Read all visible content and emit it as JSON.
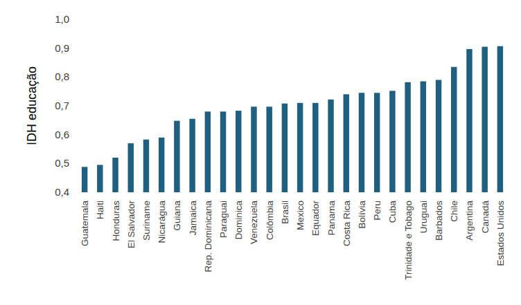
{
  "chart_data": {
    "type": "bar",
    "ylabel": "IDH educação",
    "categories": [
      "Guatemala",
      "Haiti",
      "Honduras",
      "El Salvador",
      "Suriname",
      "Nicarágua",
      "Guiana",
      "Jamaica",
      "Rep. Dominicana",
      "Paraguai",
      "Dominica",
      "Venezuela",
      "Colômbia",
      "Brasil",
      "Mexico",
      "Equador",
      "Panama",
      "Costa Rica",
      "Bolívia",
      "Peru",
      "Cuba",
      "Trinidade e Tobago",
      "Uruguai",
      "Barbados",
      "Chile",
      "Argentina",
      "Canadá",
      "Estados Unidos"
    ],
    "values": [
      0.488,
      0.495,
      0.52,
      0.57,
      0.583,
      0.59,
      0.648,
      0.655,
      0.68,
      0.68,
      0.683,
      0.697,
      0.697,
      0.708,
      0.71,
      0.71,
      0.722,
      0.74,
      0.745,
      0.745,
      0.752,
      0.782,
      0.785,
      0.79,
      0.835,
      0.897,
      0.905,
      0.907
    ],
    "color": "#1f5f7f",
    "ylim": [
      0.4,
      1.0
    ],
    "yticks": [
      {
        "value": 0.4,
        "label": "0,4"
      },
      {
        "value": 0.5,
        "label": "0,5"
      },
      {
        "value": 0.6,
        "label": "0,6"
      },
      {
        "value": 0.7,
        "label": "0,7"
      },
      {
        "value": 0.8,
        "label": "0,8"
      },
      {
        "value": 0.9,
        "label": "0,9"
      },
      {
        "value": 1.0,
        "label": "1,0"
      }
    ],
    "grid": false
  }
}
